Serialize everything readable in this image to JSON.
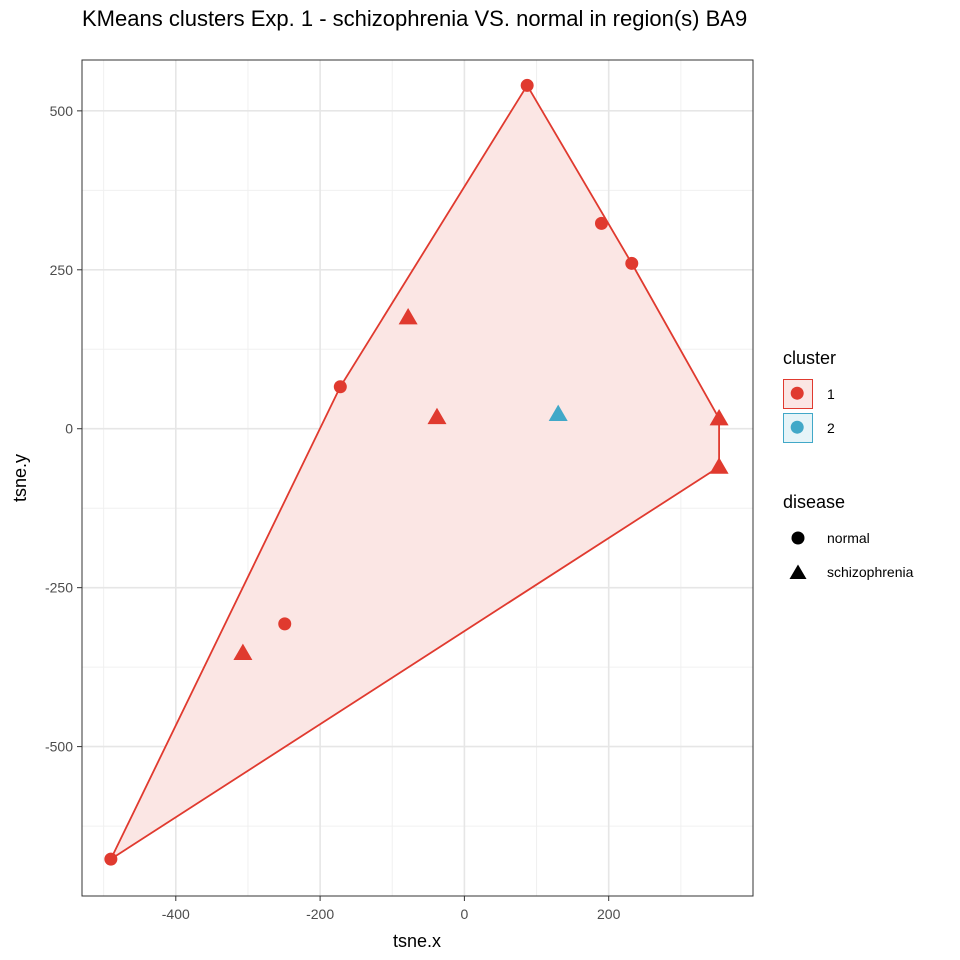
{
  "chart_data": {
    "type": "scatter",
    "title": "KMeans clusters Exp. 1 - schizophrenia VS. normal in region(s) BA9",
    "xlabel": "tsne.x",
    "ylabel": "tsne.y",
    "xlim": [
      -530,
      400
    ],
    "ylim": [
      -735,
      580
    ],
    "xticks": [
      -400,
      -200,
      0,
      200
    ],
    "xtick_labels": [
      "-400",
      "-200",
      "0",
      "200"
    ],
    "yticks": [
      -500,
      -250,
      0,
      250,
      500
    ],
    "ytick_labels": [
      "-500",
      "-250",
      "0",
      "250",
      "500"
    ],
    "grid": true,
    "points": [
      {
        "x": 87,
        "y": 540,
        "cluster": "1",
        "disease": "normal"
      },
      {
        "x": 190,
        "y": 323,
        "cluster": "1",
        "disease": "normal"
      },
      {
        "x": 232,
        "y": 260,
        "cluster": "1",
        "disease": "normal"
      },
      {
        "x": -78,
        "y": 175,
        "cluster": "1",
        "disease": "schizophrenia"
      },
      {
        "x": -172,
        "y": 66,
        "cluster": "1",
        "disease": "normal"
      },
      {
        "x": -38,
        "y": 18,
        "cluster": "1",
        "disease": "schizophrenia"
      },
      {
        "x": 130,
        "y": 23,
        "cluster": "2",
        "disease": "schizophrenia"
      },
      {
        "x": 353,
        "y": 16,
        "cluster": "1",
        "disease": "schizophrenia"
      },
      {
        "x": 353,
        "y": -60,
        "cluster": "1",
        "disease": "schizophrenia"
      },
      {
        "x": -249,
        "y": -307,
        "cluster": "1",
        "disease": "normal"
      },
      {
        "x": -307,
        "y": -353,
        "cluster": "1",
        "disease": "schizophrenia"
      },
      {
        "x": -490,
        "y": -677,
        "cluster": "1",
        "disease": "normal"
      }
    ],
    "hulls": [
      {
        "cluster": "1",
        "vertices": [
          [
            87,
            540
          ],
          [
            232,
            260
          ],
          [
            353,
            16
          ],
          [
            353,
            -60
          ],
          [
            -490,
            -677
          ],
          [
            -172,
            66
          ]
        ]
      }
    ],
    "colors": {
      "1": "#E03A2F",
      "2": "#41A8C8"
    },
    "fill_colors": {
      "1": "#FBE6E4",
      "2": "#E6F4F8"
    }
  },
  "legend": {
    "cluster_title": "cluster",
    "cluster_items": [
      {
        "label": "1",
        "color": "#E03A2F",
        "fill": "#FBE6E4"
      },
      {
        "label": "2",
        "color": "#41A8C8",
        "fill": "#E6F4F8"
      }
    ],
    "disease_title": "disease",
    "disease_items": [
      {
        "label": "normal",
        "shape": "circle"
      },
      {
        "label": "schizophrenia",
        "shape": "triangle"
      }
    ]
  }
}
